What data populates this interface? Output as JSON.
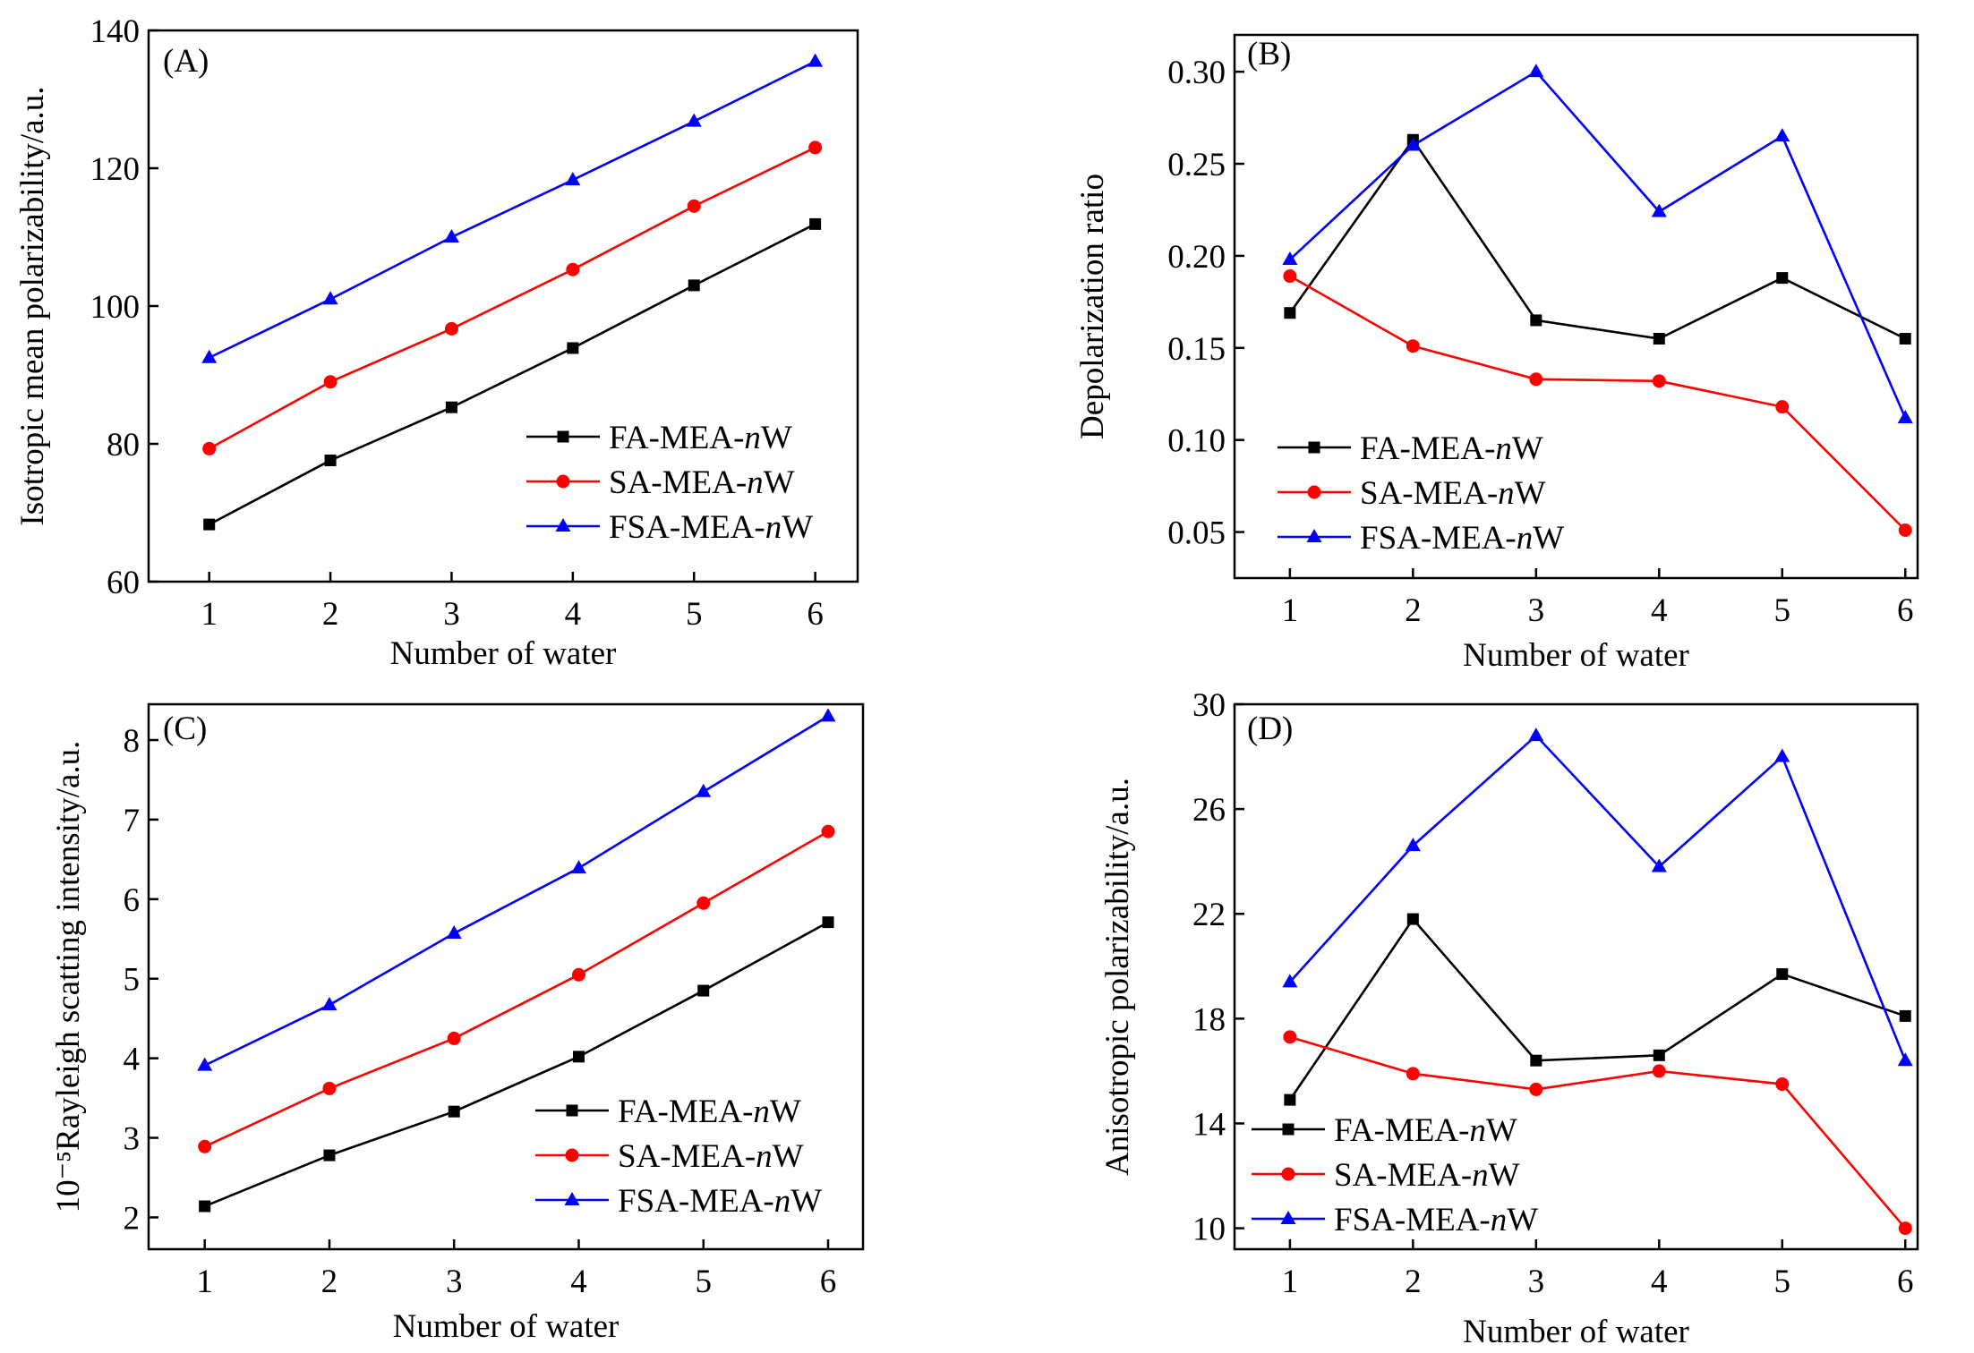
{
  "colors": {
    "FA-MEA-nW": "#000000",
    "SA-MEA-nW": "#ff0000",
    "FSA-MEA-nW": "#0000ff"
  },
  "chart_data": [
    {
      "type": "line",
      "panel": "(A)",
      "xlabel": "Number of water",
      "ylabel": "Isotropic mean polarizability/a.u.",
      "x": [
        1,
        2,
        3,
        4,
        5,
        6
      ],
      "xticks": [
        "1",
        "2",
        "3",
        "4",
        "5",
        "6"
      ],
      "xlim": [
        0.5,
        6.35
      ],
      "ylim": [
        60,
        140
      ],
      "yticks": [
        "60",
        "80",
        "100",
        "120",
        "140"
      ],
      "legend": "bottom-right",
      "series": [
        {
          "name": "FA-MEA-",
          "italic": "n",
          "suffix": "W",
          "values": [
            68.3,
            77.6,
            85.3,
            93.9,
            103.0,
            111.9
          ]
        },
        {
          "name": "SA-MEA-",
          "italic": "n",
          "suffix": "W",
          "values": [
            79.3,
            89.0,
            96.7,
            105.3,
            114.5,
            123.0
          ]
        },
        {
          "name": "FSA-MEA-",
          "italic": "n",
          "suffix": "W",
          "values": [
            92.5,
            101.0,
            110.0,
            118.3,
            126.8,
            135.5
          ]
        }
      ]
    },
    {
      "type": "line",
      "panel": "(B)",
      "xlabel": "Number of water",
      "ylabel": "Depolarization ratio",
      "x": [
        1,
        2,
        3,
        4,
        5,
        6
      ],
      "xticks": [
        "1",
        "2",
        "3",
        "4",
        "5",
        "6"
      ],
      "xlim": [
        0.55,
        6.1
      ],
      "ylim": [
        0.025,
        0.32
      ],
      "yticks": [
        "0.05",
        "0.10",
        "0.15",
        "0.20",
        "0.25",
        "0.30"
      ],
      "legend": "bottom-left",
      "series": [
        {
          "name": "FA-MEA-",
          "italic": "n",
          "suffix": "W",
          "values": [
            0.169,
            0.263,
            0.165,
            0.155,
            0.188,
            0.155
          ]
        },
        {
          "name": "SA-MEA-",
          "italic": "n",
          "suffix": "W",
          "values": [
            0.189,
            0.151,
            0.133,
            0.132,
            0.118,
            0.051
          ]
        },
        {
          "name": "FSA-MEA-",
          "italic": "n",
          "suffix": "W",
          "values": [
            0.198,
            0.26,
            0.3,
            0.224,
            0.265,
            0.112
          ]
        }
      ]
    },
    {
      "type": "line",
      "panel": "(C)",
      "xlabel": "Number of water",
      "ylabel": "10⁻⁵Rayleigh scatting intensity/a.u.",
      "x": [
        1,
        2,
        3,
        4,
        5,
        6
      ],
      "xticks": [
        "1",
        "2",
        "3",
        "4",
        "5",
        "6"
      ],
      "xlim": [
        0.55,
        6.28
      ],
      "ylim": [
        1.6,
        8.45
      ],
      "yticks": [
        "2",
        "3",
        "4",
        "5",
        "6",
        "7",
        "8"
      ],
      "legend": "bottom-right",
      "series": [
        {
          "name": "FA-MEA-",
          "italic": "n",
          "suffix": "W",
          "values": [
            2.14,
            2.78,
            3.33,
            4.02,
            4.85,
            5.71
          ]
        },
        {
          "name": "SA-MEA-",
          "italic": "n",
          "suffix": "W",
          "values": [
            2.89,
            3.62,
            4.25,
            5.05,
            5.95,
            6.85
          ]
        },
        {
          "name": "FSA-MEA-",
          "italic": "n",
          "suffix": "W",
          "values": [
            3.91,
            4.67,
            5.57,
            6.39,
            7.35,
            8.3
          ]
        }
      ]
    },
    {
      "type": "line",
      "panel": "(D)",
      "xlabel": "Number of water",
      "ylabel": "Anisotropic polarizability/a.u.",
      "x": [
        1,
        2,
        3,
        4,
        5,
        6
      ],
      "xticks": [
        "1",
        "2",
        "3",
        "4",
        "5",
        "6"
      ],
      "xlim": [
        0.55,
        6.1
      ],
      "ylim": [
        9.2,
        30
      ],
      "yticks": [
        "10",
        "14",
        "18",
        "22",
        "26",
        "30"
      ],
      "legend": "bottom-left",
      "series": [
        {
          "name": "FA-MEA-",
          "italic": "n",
          "suffix": "W",
          "values": [
            14.9,
            21.8,
            16.4,
            16.6,
            19.7,
            18.1
          ]
        },
        {
          "name": "SA-MEA-",
          "italic": "n",
          "suffix": "W",
          "values": [
            17.3,
            15.9,
            15.3,
            16.0,
            15.5,
            10.0
          ]
        },
        {
          "name": "FSA-MEA-",
          "italic": "n",
          "suffix": "W",
          "values": [
            19.4,
            24.6,
            28.8,
            23.8,
            28.0,
            16.4
          ]
        }
      ]
    }
  ]
}
